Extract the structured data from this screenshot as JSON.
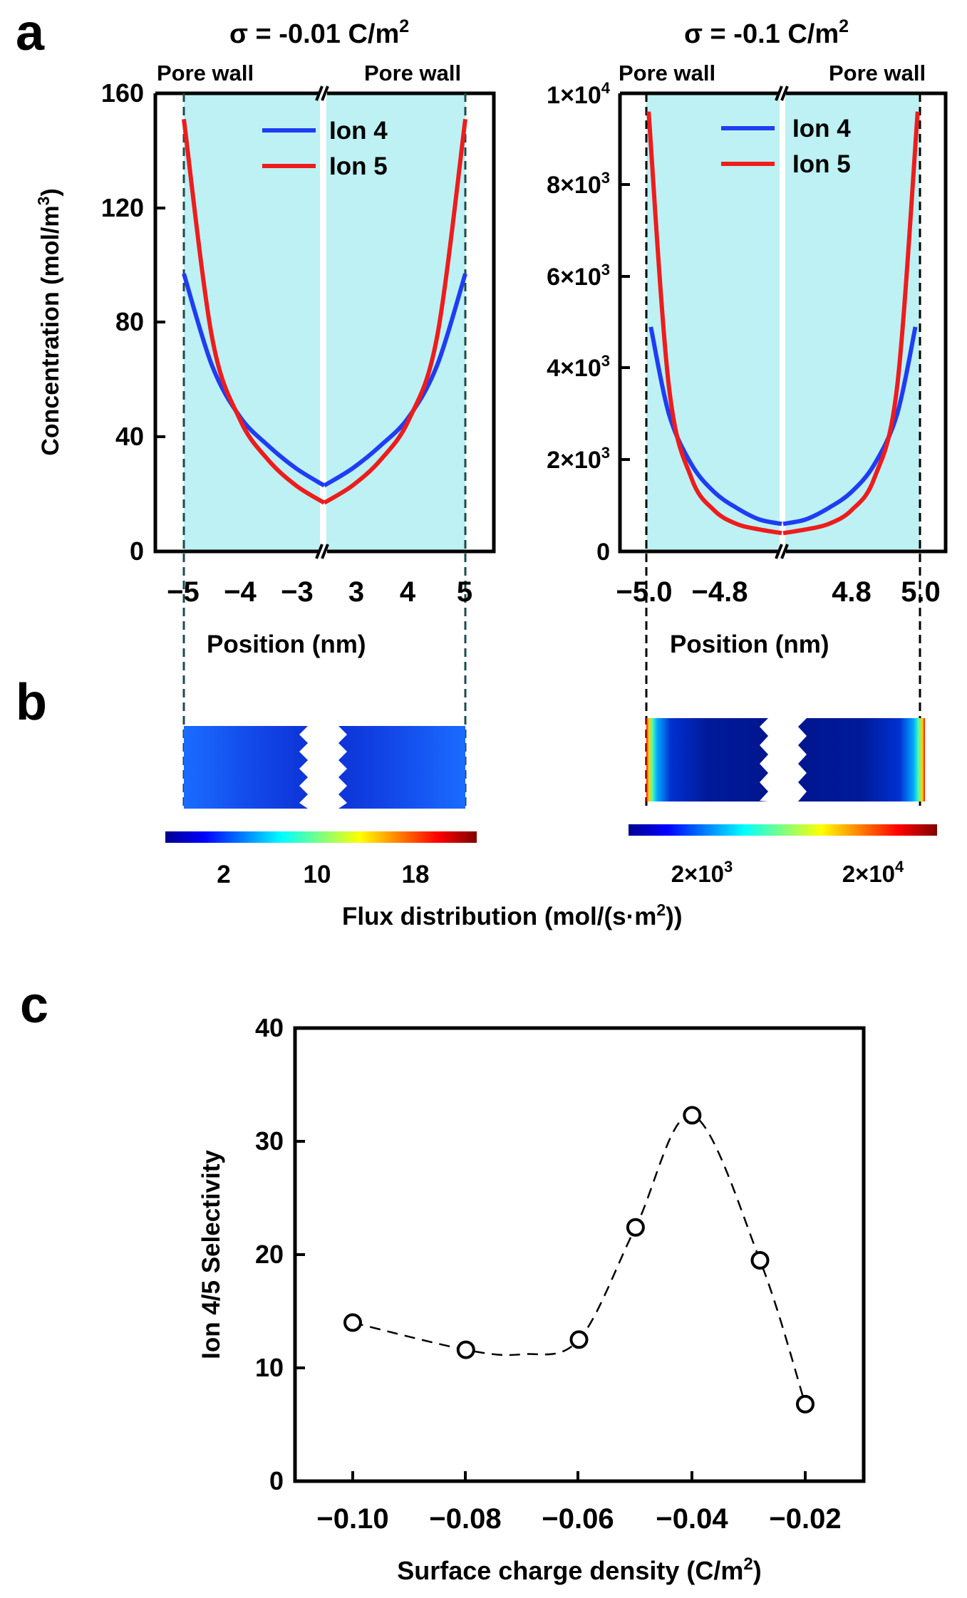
{
  "panels": {
    "a": {
      "letter": "a",
      "left": {
        "title_prefix": "σ = -0.01 C/m",
        "title_sup": "2",
        "pore_wall_left": "Pore wall",
        "pore_wall_right": "Pore wall",
        "ylabel_main": "Concentration (mol/m",
        "ylabel_sup": "3",
        "ylabel_end": ")",
        "xlabel": "Position (nm)",
        "yticks": [
          "0",
          "40",
          "80",
          "120",
          "160"
        ],
        "xticks_left": [
          "−5",
          "−4",
          "−3"
        ],
        "xticks_right": [
          "3",
          "4",
          "5"
        ],
        "legend": [
          "Ion 4",
          "Ion 5"
        ]
      },
      "right": {
        "title_prefix": "σ = -0.1 C/m",
        "title_sup": "2",
        "pore_wall_left": "Pore wall",
        "pore_wall_right": "Pore wall",
        "xlabel": "Position (nm)",
        "yticks": [
          {
            "base": "0",
            "exp": ""
          },
          {
            "base": "2×10",
            "exp": "3"
          },
          {
            "base": "4×10",
            "exp": "3"
          },
          {
            "base": "6×10",
            "exp": "3"
          },
          {
            "base": "8×10",
            "exp": "3"
          },
          {
            "base": "1×10",
            "exp": "4"
          }
        ],
        "xticks_left": [
          "−5.0",
          "−4.8"
        ],
        "xticks_right": [
          "4.8",
          "5.0"
        ],
        "legend": [
          "Ion 4",
          "Ion 5"
        ]
      }
    },
    "b": {
      "letter": "b",
      "colorbar_left_ticks": [
        "2",
        "10",
        "18"
      ],
      "colorbar_right_ticks": [
        {
          "base": "2×10",
          "exp": "3"
        },
        {
          "base": "2×10",
          "exp": "4"
        }
      ],
      "flux_label_main": "Flux distribution (mol/(s·m",
      "flux_label_sup": "2",
      "flux_label_end": "))"
    },
    "c": {
      "letter": "c",
      "xlabel_main": "Surface charge density (C/m",
      "xlabel_sup": "2",
      "xlabel_end": ")",
      "ylabel": "Ion 4/5 Selectivity"
    }
  },
  "colors": {
    "ion4": "#1f3df2",
    "ion5": "#ee1c1c",
    "pore_fill": "#bdf1f4",
    "axis": "#000000"
  },
  "chart_data": [
    {
      "type": "line",
      "title": "σ = -0.01 C/m2",
      "xlabel": "Position (nm)",
      "ylabel": "Concentration (mol/m3)",
      "ylim": [
        0,
        160
      ],
      "x_segments": [
        [
          -5,
          -2.5
        ],
        [
          2.5,
          5
        ]
      ],
      "series": [
        {
          "name": "Ion 4",
          "x": [
            -5.0,
            -4.5,
            -4.0,
            -3.5,
            -3.0,
            -2.5
          ],
          "values": [
            97,
            65,
            47,
            37,
            29,
            23
          ]
        },
        {
          "name": "Ion 5",
          "x": [
            -5.0,
            -4.5,
            -4.0,
            -3.5,
            -3.0,
            -2.5
          ],
          "values": [
            151,
            75,
            46,
            32,
            23,
            17
          ]
        }
      ],
      "note": "profiles symmetric about the pore centre (mirror at x > 0)"
    },
    {
      "type": "line",
      "title": "σ = -0.1 C/m2",
      "xlabel": "Position (nm)",
      "ylabel": "Concentration (mol/m3)",
      "ylim": [
        0,
        10000
      ],
      "x_segments": [
        [
          -5.0,
          -4.7
        ],
        [
          4.7,
          5.0
        ]
      ],
      "series": [
        {
          "name": "Ion 4",
          "x": [
            -4.99,
            -4.95,
            -4.9,
            -4.85,
            -4.8,
            -4.75,
            -4.7
          ],
          "values": [
            4900,
            3000,
            1900,
            1300,
            950,
            700,
            600
          ]
        },
        {
          "name": "Ion 5",
          "x": [
            -4.995,
            -4.95,
            -4.9,
            -4.85,
            -4.8,
            -4.75,
            -4.7
          ],
          "values": [
            9600,
            3600,
            1600,
            900,
            600,
            480,
            400
          ]
        }
      ],
      "note": "profiles symmetric about the pore centre (mirror at x > 0)"
    },
    {
      "type": "scatter",
      "title": "",
      "xlabel": "Surface charge density (C/m2)",
      "ylabel": "Ion 4/5 Selectivity",
      "xlim": [
        -0.11,
        -0.01
      ],
      "ylim": [
        0,
        40
      ],
      "xticks": [
        -0.1,
        -0.08,
        -0.06,
        -0.04,
        -0.02
      ],
      "xtick_labels": [
        "−0.10",
        "−0.08",
        "−0.06",
        "−0.04",
        "−0.02"
      ],
      "yticks": [
        0,
        10,
        20,
        30,
        40
      ],
      "series": [
        {
          "name": "Selectivity",
          "x": [
            -0.1,
            -0.08,
            -0.06,
            -0.05,
            -0.04,
            -0.028,
            -0.02
          ],
          "values": [
            14.0,
            11.6,
            12.5,
            22.4,
            32.3,
            19.5,
            6.8
          ]
        }
      ],
      "fit": "dashed smooth curve through points"
    }
  ]
}
